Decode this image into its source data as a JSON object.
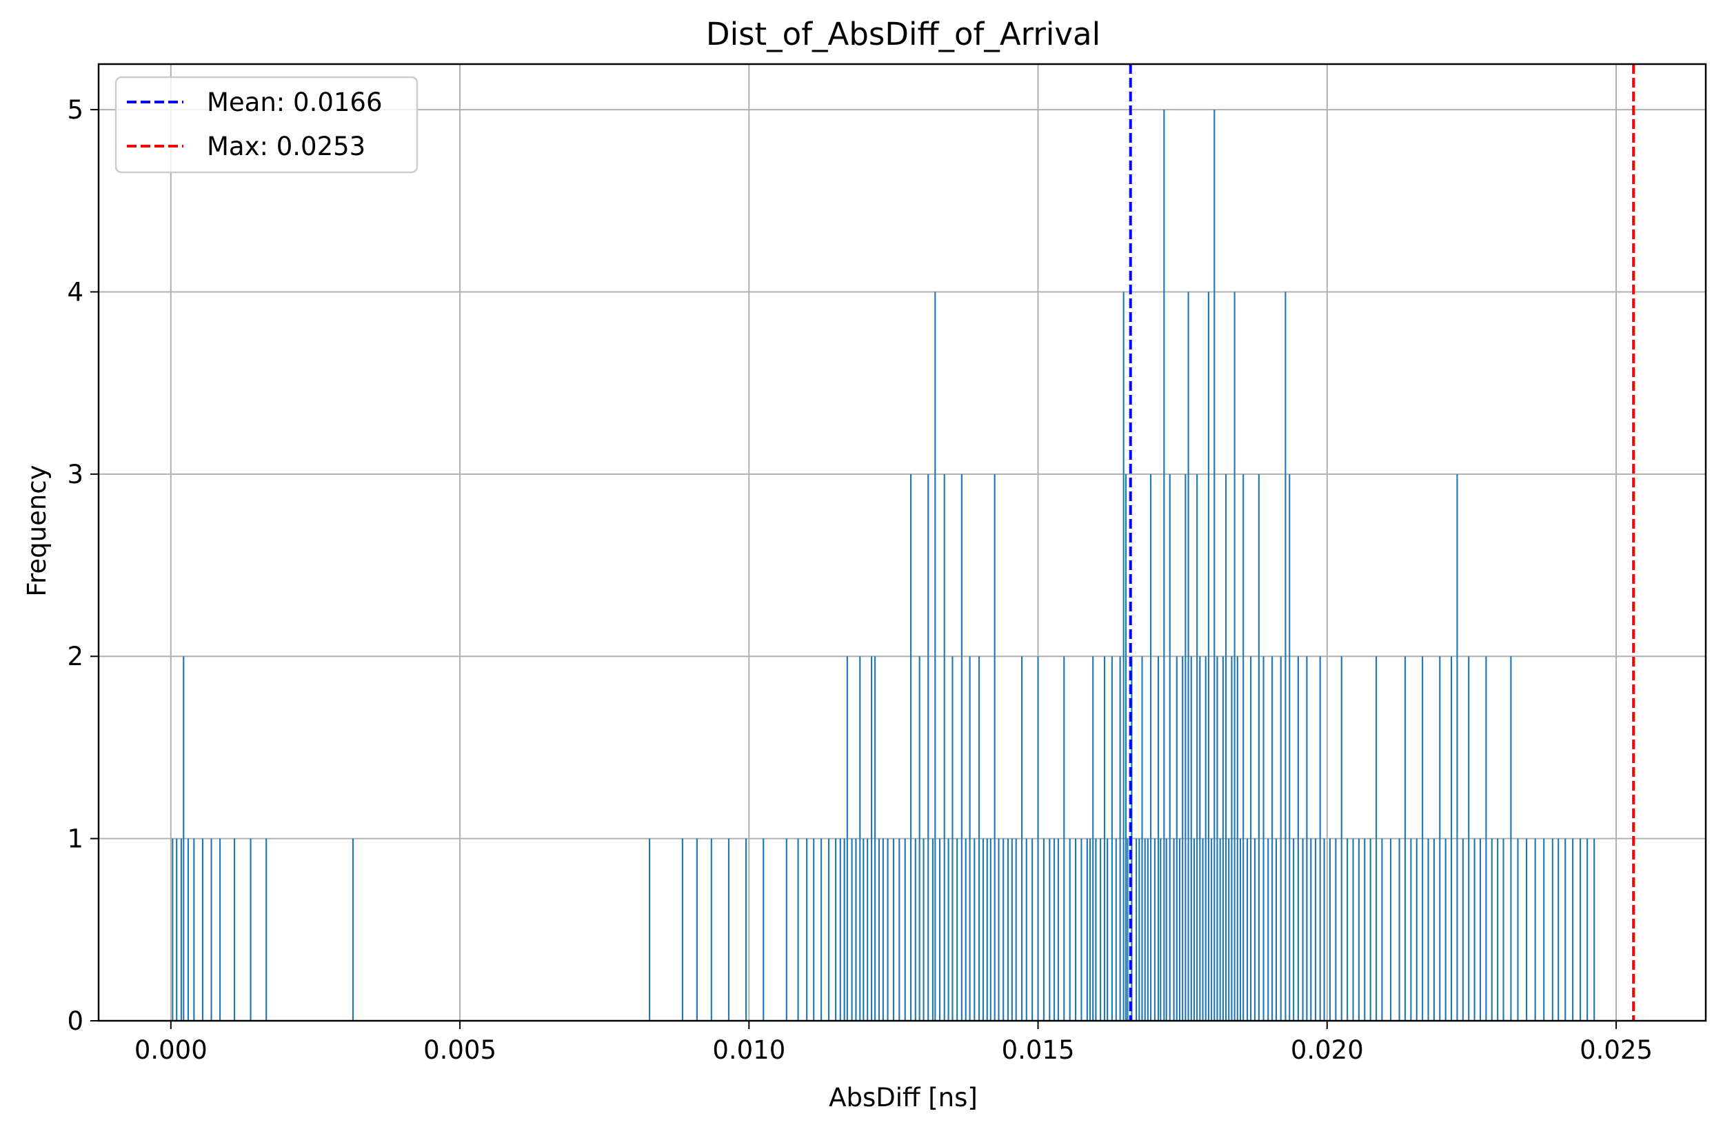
{
  "chart_data": {
    "type": "bar",
    "title": "Dist_of_AbsDiff_of_Arrival",
    "xlabel": "AbsDiff [ns]",
    "ylabel": "Frequency",
    "xlim": [
      -0.00125,
      0.02655
    ],
    "ylim": [
      0,
      5.25
    ],
    "x_ticks": [
      {
        "value": 0.0,
        "label": "0.000"
      },
      {
        "value": 0.005,
        "label": "0.005"
      },
      {
        "value": 0.01,
        "label": "0.010"
      },
      {
        "value": 0.015,
        "label": "0.015"
      },
      {
        "value": 0.02,
        "label": "0.020"
      },
      {
        "value": 0.025,
        "label": "0.025"
      }
    ],
    "y_ticks": [
      {
        "value": 0,
        "label": "0"
      },
      {
        "value": 1,
        "label": "1"
      },
      {
        "value": 2,
        "label": "2"
      },
      {
        "value": 3,
        "label": "3"
      },
      {
        "value": 4,
        "label": "4"
      },
      {
        "value": 5,
        "label": "5"
      }
    ],
    "grid": true,
    "legend_position": "top-left",
    "bar_color": "#1f77b4",
    "bin_width": 2.53e-05,
    "bins": [
      [
        3e-05,
        1
      ],
      [
        0.0001,
        1
      ],
      [
        0.00018,
        1
      ],
      [
        0.00022,
        2
      ],
      [
        0.0003,
        1
      ],
      [
        0.0004,
        1
      ],
      [
        0.00055,
        1
      ],
      [
        0.0007,
        1
      ],
      [
        0.00085,
        1
      ],
      [
        0.0011,
        1
      ],
      [
        0.00138,
        1
      ],
      [
        0.00165,
        1
      ],
      [
        0.00315,
        1
      ],
      [
        0.00828,
        1
      ],
      [
        0.00885,
        1
      ],
      [
        0.0091,
        1
      ],
      [
        0.00935,
        1
      ],
      [
        0.00965,
        1
      ],
      [
        0.00995,
        1
      ],
      [
        0.01025,
        1
      ],
      [
        0.01065,
        1
      ],
      [
        0.01085,
        1
      ],
      [
        0.011,
        1
      ],
      [
        0.01112,
        1
      ],
      [
        0.01125,
        1
      ],
      [
        0.01138,
        1
      ],
      [
        0.0115,
        1
      ],
      [
        0.01158,
        1
      ],
      [
        0.01165,
        1
      ],
      [
        0.0117,
        2
      ],
      [
        0.01178,
        1
      ],
      [
        0.01185,
        1
      ],
      [
        0.01192,
        2
      ],
      [
        0.01198,
        1
      ],
      [
        0.01205,
        1
      ],
      [
        0.01212,
        2
      ],
      [
        0.01218,
        2
      ],
      [
        0.01225,
        1
      ],
      [
        0.01232,
        1
      ],
      [
        0.0124,
        1
      ],
      [
        0.0125,
        1
      ],
      [
        0.0126,
        1
      ],
      [
        0.0127,
        1
      ],
      [
        0.0128,
        3
      ],
      [
        0.01288,
        1
      ],
      [
        0.01295,
        2
      ],
      [
        0.01302,
        1
      ],
      [
        0.0131,
        3
      ],
      [
        0.01318,
        1
      ],
      [
        0.01322,
        4
      ],
      [
        0.0133,
        1
      ],
      [
        0.01338,
        3
      ],
      [
        0.01345,
        1
      ],
      [
        0.01352,
        2
      ],
      [
        0.0136,
        1
      ],
      [
        0.01368,
        3
      ],
      [
        0.01375,
        1
      ],
      [
        0.01382,
        2
      ],
      [
        0.0139,
        1
      ],
      [
        0.01398,
        2
      ],
      [
        0.01405,
        1
      ],
      [
        0.01412,
        1
      ],
      [
        0.01418,
        1
      ],
      [
        0.01425,
        3
      ],
      [
        0.01432,
        1
      ],
      [
        0.0144,
        1
      ],
      [
        0.01448,
        1
      ],
      [
        0.01455,
        1
      ],
      [
        0.01462,
        1
      ],
      [
        0.01472,
        2
      ],
      [
        0.0148,
        1
      ],
      [
        0.0149,
        1
      ],
      [
        0.015,
        2
      ],
      [
        0.0151,
        1
      ],
      [
        0.0152,
        1
      ],
      [
        0.01528,
        1
      ],
      [
        0.01535,
        1
      ],
      [
        0.01545,
        2
      ],
      [
        0.01555,
        1
      ],
      [
        0.01565,
        1
      ],
      [
        0.01575,
        1
      ],
      [
        0.01585,
        1
      ],
      [
        0.0159,
        1
      ],
      [
        0.01595,
        2
      ],
      [
        0.016,
        1
      ],
      [
        0.01608,
        1
      ],
      [
        0.01615,
        2
      ],
      [
        0.0162,
        1
      ],
      [
        0.01628,
        2
      ],
      [
        0.01635,
        1
      ],
      [
        0.01642,
        2
      ],
      [
        0.01648,
        4
      ],
      [
        0.01652,
        3
      ],
      [
        0.01655,
        1
      ],
      [
        0.01662,
        2
      ],
      [
        0.0167,
        1
      ],
      [
        0.01675,
        1
      ],
      [
        0.0168,
        2
      ],
      [
        0.01685,
        1
      ],
      [
        0.0169,
        1
      ],
      [
        0.01695,
        3
      ],
      [
        0.01702,
        1
      ],
      [
        0.01708,
        2
      ],
      [
        0.01712,
        1
      ],
      [
        0.01718,
        5
      ],
      [
        0.01722,
        1
      ],
      [
        0.01728,
        3
      ],
      [
        0.01735,
        1
      ],
      [
        0.0174,
        2
      ],
      [
        0.01745,
        1
      ],
      [
        0.0175,
        2
      ],
      [
        0.01755,
        3
      ],
      [
        0.0176,
        4
      ],
      [
        0.01765,
        2
      ],
      [
        0.0177,
        1
      ],
      [
        0.01775,
        3
      ],
      [
        0.0178,
        2
      ],
      [
        0.01785,
        1
      ],
      [
        0.0179,
        2
      ],
      [
        0.01795,
        4
      ],
      [
        0.018,
        1
      ],
      [
        0.01805,
        5
      ],
      [
        0.0181,
        2
      ],
      [
        0.01815,
        1
      ],
      [
        0.0182,
        2
      ],
      [
        0.01825,
        3
      ],
      [
        0.0183,
        1
      ],
      [
        0.01835,
        2
      ],
      [
        0.0184,
        4
      ],
      [
        0.01845,
        2
      ],
      [
        0.0185,
        1
      ],
      [
        0.01855,
        3
      ],
      [
        0.01862,
        1
      ],
      [
        0.01868,
        2
      ],
      [
        0.01875,
        1
      ],
      [
        0.01882,
        3
      ],
      [
        0.0189,
        2
      ],
      [
        0.01898,
        1
      ],
      [
        0.01905,
        2
      ],
      [
        0.01912,
        1
      ],
      [
        0.0192,
        2
      ],
      [
        0.01928,
        4
      ],
      [
        0.01935,
        3
      ],
      [
        0.01942,
        1
      ],
      [
        0.0195,
        2
      ],
      [
        0.01958,
        1
      ],
      [
        0.01965,
        2
      ],
      [
        0.01972,
        1
      ],
      [
        0.0198,
        1
      ],
      [
        0.01988,
        2
      ],
      [
        0.01995,
        1
      ],
      [
        0.02005,
        1
      ],
      [
        0.02015,
        1
      ],
      [
        0.02025,
        2
      ],
      [
        0.02035,
        1
      ],
      [
        0.02045,
        1
      ],
      [
        0.02055,
        1
      ],
      [
        0.02065,
        1
      ],
      [
        0.02075,
        1
      ],
      [
        0.02085,
        2
      ],
      [
        0.02095,
        1
      ],
      [
        0.0211,
        1
      ],
      [
        0.02125,
        1
      ],
      [
        0.02135,
        2
      ],
      [
        0.02145,
        1
      ],
      [
        0.02155,
        1
      ],
      [
        0.02165,
        2
      ],
      [
        0.02175,
        1
      ],
      [
        0.02185,
        1
      ],
      [
        0.02195,
        2
      ],
      [
        0.02205,
        1
      ],
      [
        0.02215,
        2
      ],
      [
        0.02225,
        3
      ],
      [
        0.02235,
        1
      ],
      [
        0.02245,
        2
      ],
      [
        0.02255,
        1
      ],
      [
        0.02265,
        1
      ],
      [
        0.02275,
        2
      ],
      [
        0.02285,
        1
      ],
      [
        0.02295,
        1
      ],
      [
        0.02305,
        1
      ],
      [
        0.02318,
        2
      ],
      [
        0.0233,
        1
      ],
      [
        0.02345,
        1
      ],
      [
        0.0236,
        1
      ],
      [
        0.02375,
        1
      ],
      [
        0.0239,
        1
      ],
      [
        0.024,
        1
      ],
      [
        0.02412,
        1
      ],
      [
        0.02425,
        1
      ],
      [
        0.02438,
        1
      ],
      [
        0.0245,
        1
      ],
      [
        0.02462,
        1
      ]
    ],
    "reference_lines": [
      {
        "name": "Mean: 0.0166",
        "value": 0.0166,
        "color": "#0000ff",
        "style": "dashed"
      },
      {
        "name": "Max: 0.0253",
        "value": 0.0253,
        "color": "#ff0000",
        "style": "dashed"
      }
    ]
  }
}
